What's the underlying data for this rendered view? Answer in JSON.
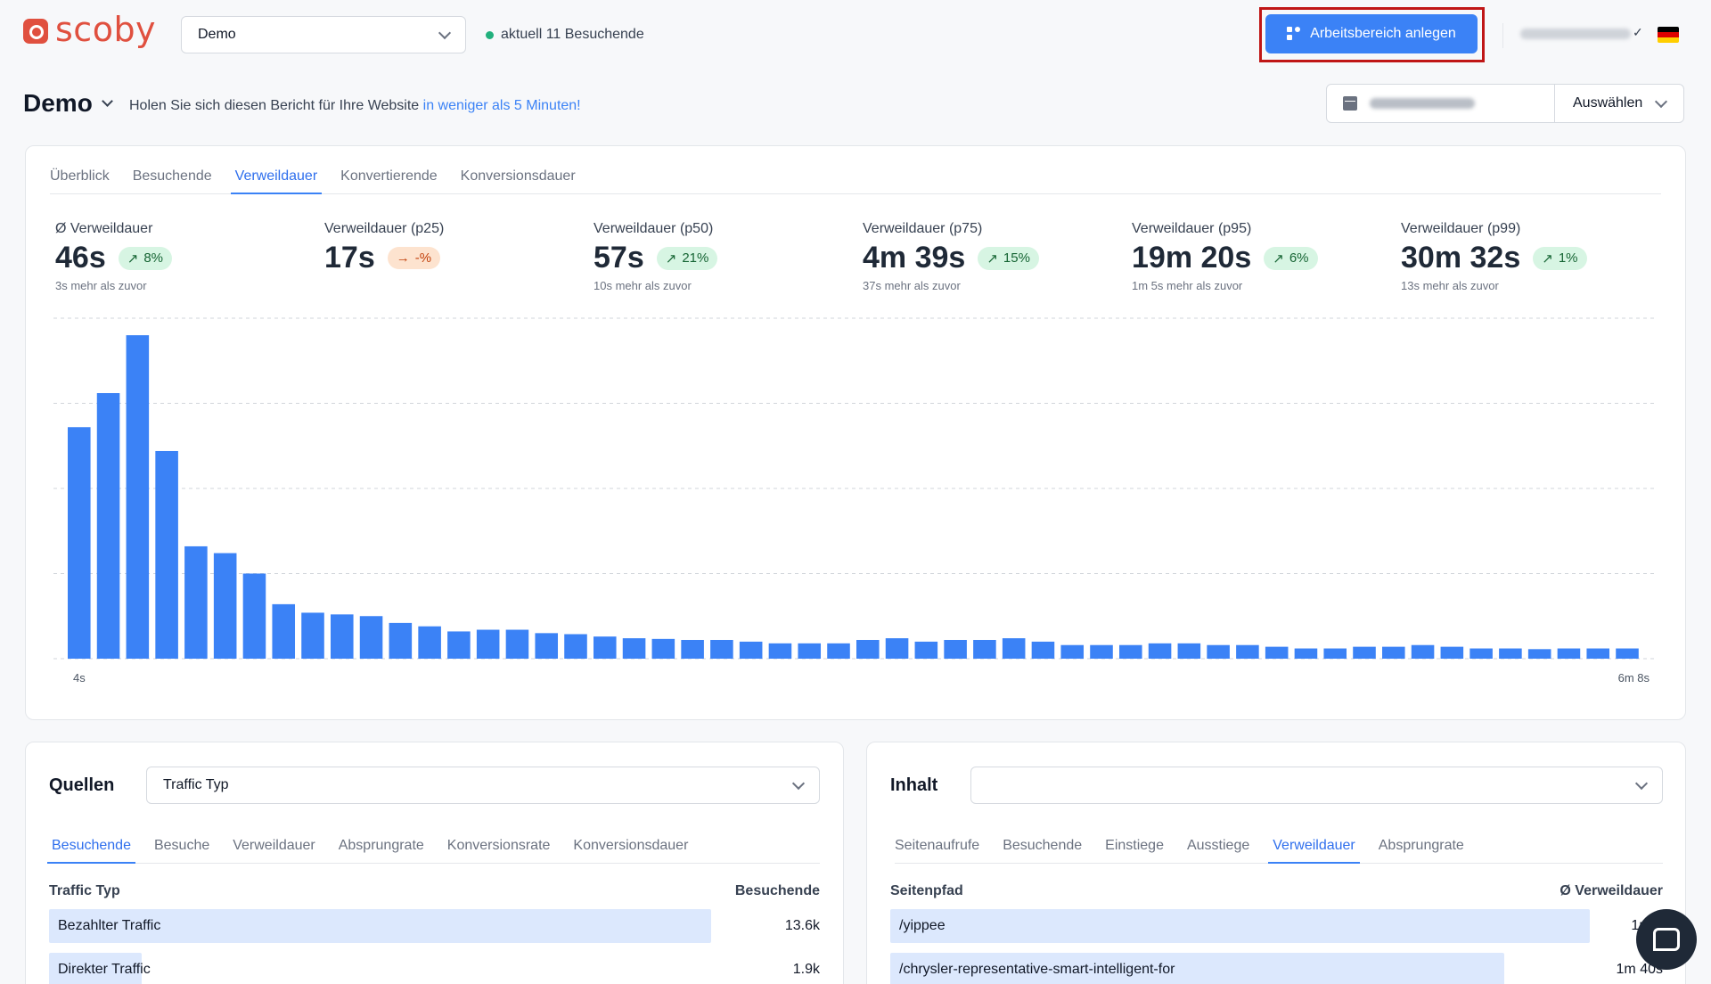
{
  "brand": {
    "name": "scoby",
    "color": "#e0503f"
  },
  "header": {
    "site_select": "Demo",
    "live_text": "aktuell 11 Besuchende",
    "create_workspace": "Arbeitsbereich anlegen",
    "user_check": "✓",
    "flag": "de"
  },
  "page": {
    "title": "Demo",
    "promo_text": "Holen Sie sich diesen Bericht für Ihre Website ",
    "promo_link": "in weniger als 5 Minuten!",
    "period_button": "Auswählen"
  },
  "main": {
    "tabs": [
      "Überblick",
      "Besuchende",
      "Verweildauer",
      "Konvertierende",
      "Konversionsdauer"
    ],
    "active_tab": "Verweildauer",
    "stats": [
      {
        "label": "Ø Verweildauer",
        "value": "46s",
        "change": "8%",
        "trend": "up",
        "sub": "3s mehr als zuvor"
      },
      {
        "label": "Verweildauer (p25)",
        "value": "17s",
        "change": "-%",
        "trend": "flat",
        "sub": ""
      },
      {
        "label": "Verweildauer (p50)",
        "value": "57s",
        "change": "21%",
        "trend": "up",
        "sub": "10s mehr als zuvor"
      },
      {
        "label": "Verweildauer (p75)",
        "value": "4m 39s",
        "change": "15%",
        "trend": "up",
        "sub": "37s mehr als zuvor"
      },
      {
        "label": "Verweildauer (p95)",
        "value": "19m 20s",
        "change": "6%",
        "trend": "up",
        "sub": "1m 5s mehr als zuvor"
      },
      {
        "label": "Verweildauer (p99)",
        "value": "30m 32s",
        "change": "1%",
        "trend": "up",
        "sub": "13s mehr als zuvor"
      }
    ]
  },
  "chart_data": {
    "type": "bar",
    "title": "",
    "xlabel": "",
    "ylabel": "",
    "x_start_label": "4s",
    "x_end_label": "6m 8s",
    "ylim": [
      0,
      100
    ],
    "grid": true,
    "bar_color": "#3b82f6",
    "values": [
      68,
      78,
      95,
      61,
      33,
      31,
      25,
      16,
      13.5,
      13,
      12.5,
      10.5,
      9.5,
      8,
      8.5,
      8.5,
      7.5,
      7.2,
      6.5,
      6,
      5.8,
      5.5,
      5.5,
      5,
      4.5,
      4.5,
      4.5,
      5.5,
      6,
      5,
      5.5,
      5.5,
      6,
      5,
      4,
      4,
      4,
      4.5,
      4.5,
      4,
      4,
      3.5,
      3,
      3,
      3.5,
      3.5,
      4,
      3.5,
      3,
      3,
      2.8,
      3,
      3,
      3
    ]
  },
  "sources": {
    "title": "Quellen",
    "dropdown": "Traffic Typ",
    "tabs": [
      "Besuchende",
      "Besuche",
      "Verweildauer",
      "Absprungrate",
      "Konversionsrate",
      "Konversionsdauer"
    ],
    "active_tab": "Besuchende",
    "col_left": "Traffic Typ",
    "col_right": "Besuchende",
    "rows": [
      {
        "label": "Bezahlter Traffic",
        "value": "13.6k",
        "share": 0.93
      },
      {
        "label": "Direkter Traffic",
        "value": "1.9k",
        "share": 0.13
      }
    ]
  },
  "content": {
    "title": "Inhalt",
    "dropdown": "",
    "tabs": [
      "Seitenaufrufe",
      "Besuchende",
      "Einstiege",
      "Ausstiege",
      "Verweildauer",
      "Absprungrate"
    ],
    "active_tab": "Verweildauer",
    "col_left": "Seitenpfad",
    "col_right": "Ø Verweildauer",
    "rows": [
      {
        "label": "/yippee",
        "value": "1m 5",
        "share": 0.98
      },
      {
        "label": "/chrysler-representative-smart-intelligent-for",
        "value": "1m 40s",
        "share": 0.86
      }
    ]
  }
}
